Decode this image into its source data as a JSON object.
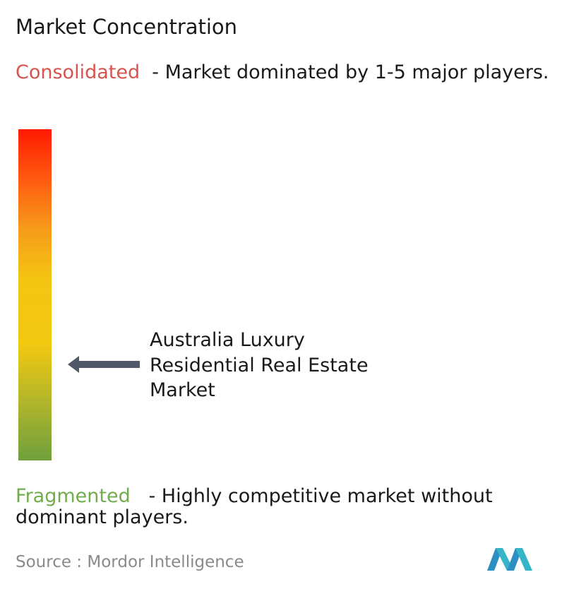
{
  "title": "Market Concentration",
  "consolidated": {
    "label": "Consolidated",
    "description": "- Market dominated by 1-5 major players."
  },
  "marker": {
    "label": "Australia Luxury Residential Real Estate Market"
  },
  "fragmented": {
    "label": "Fragmented",
    "description": "- Highly competitive market without dominant players."
  },
  "source": {
    "label": "Source :",
    "name": "Mordor Intelligence"
  }
}
